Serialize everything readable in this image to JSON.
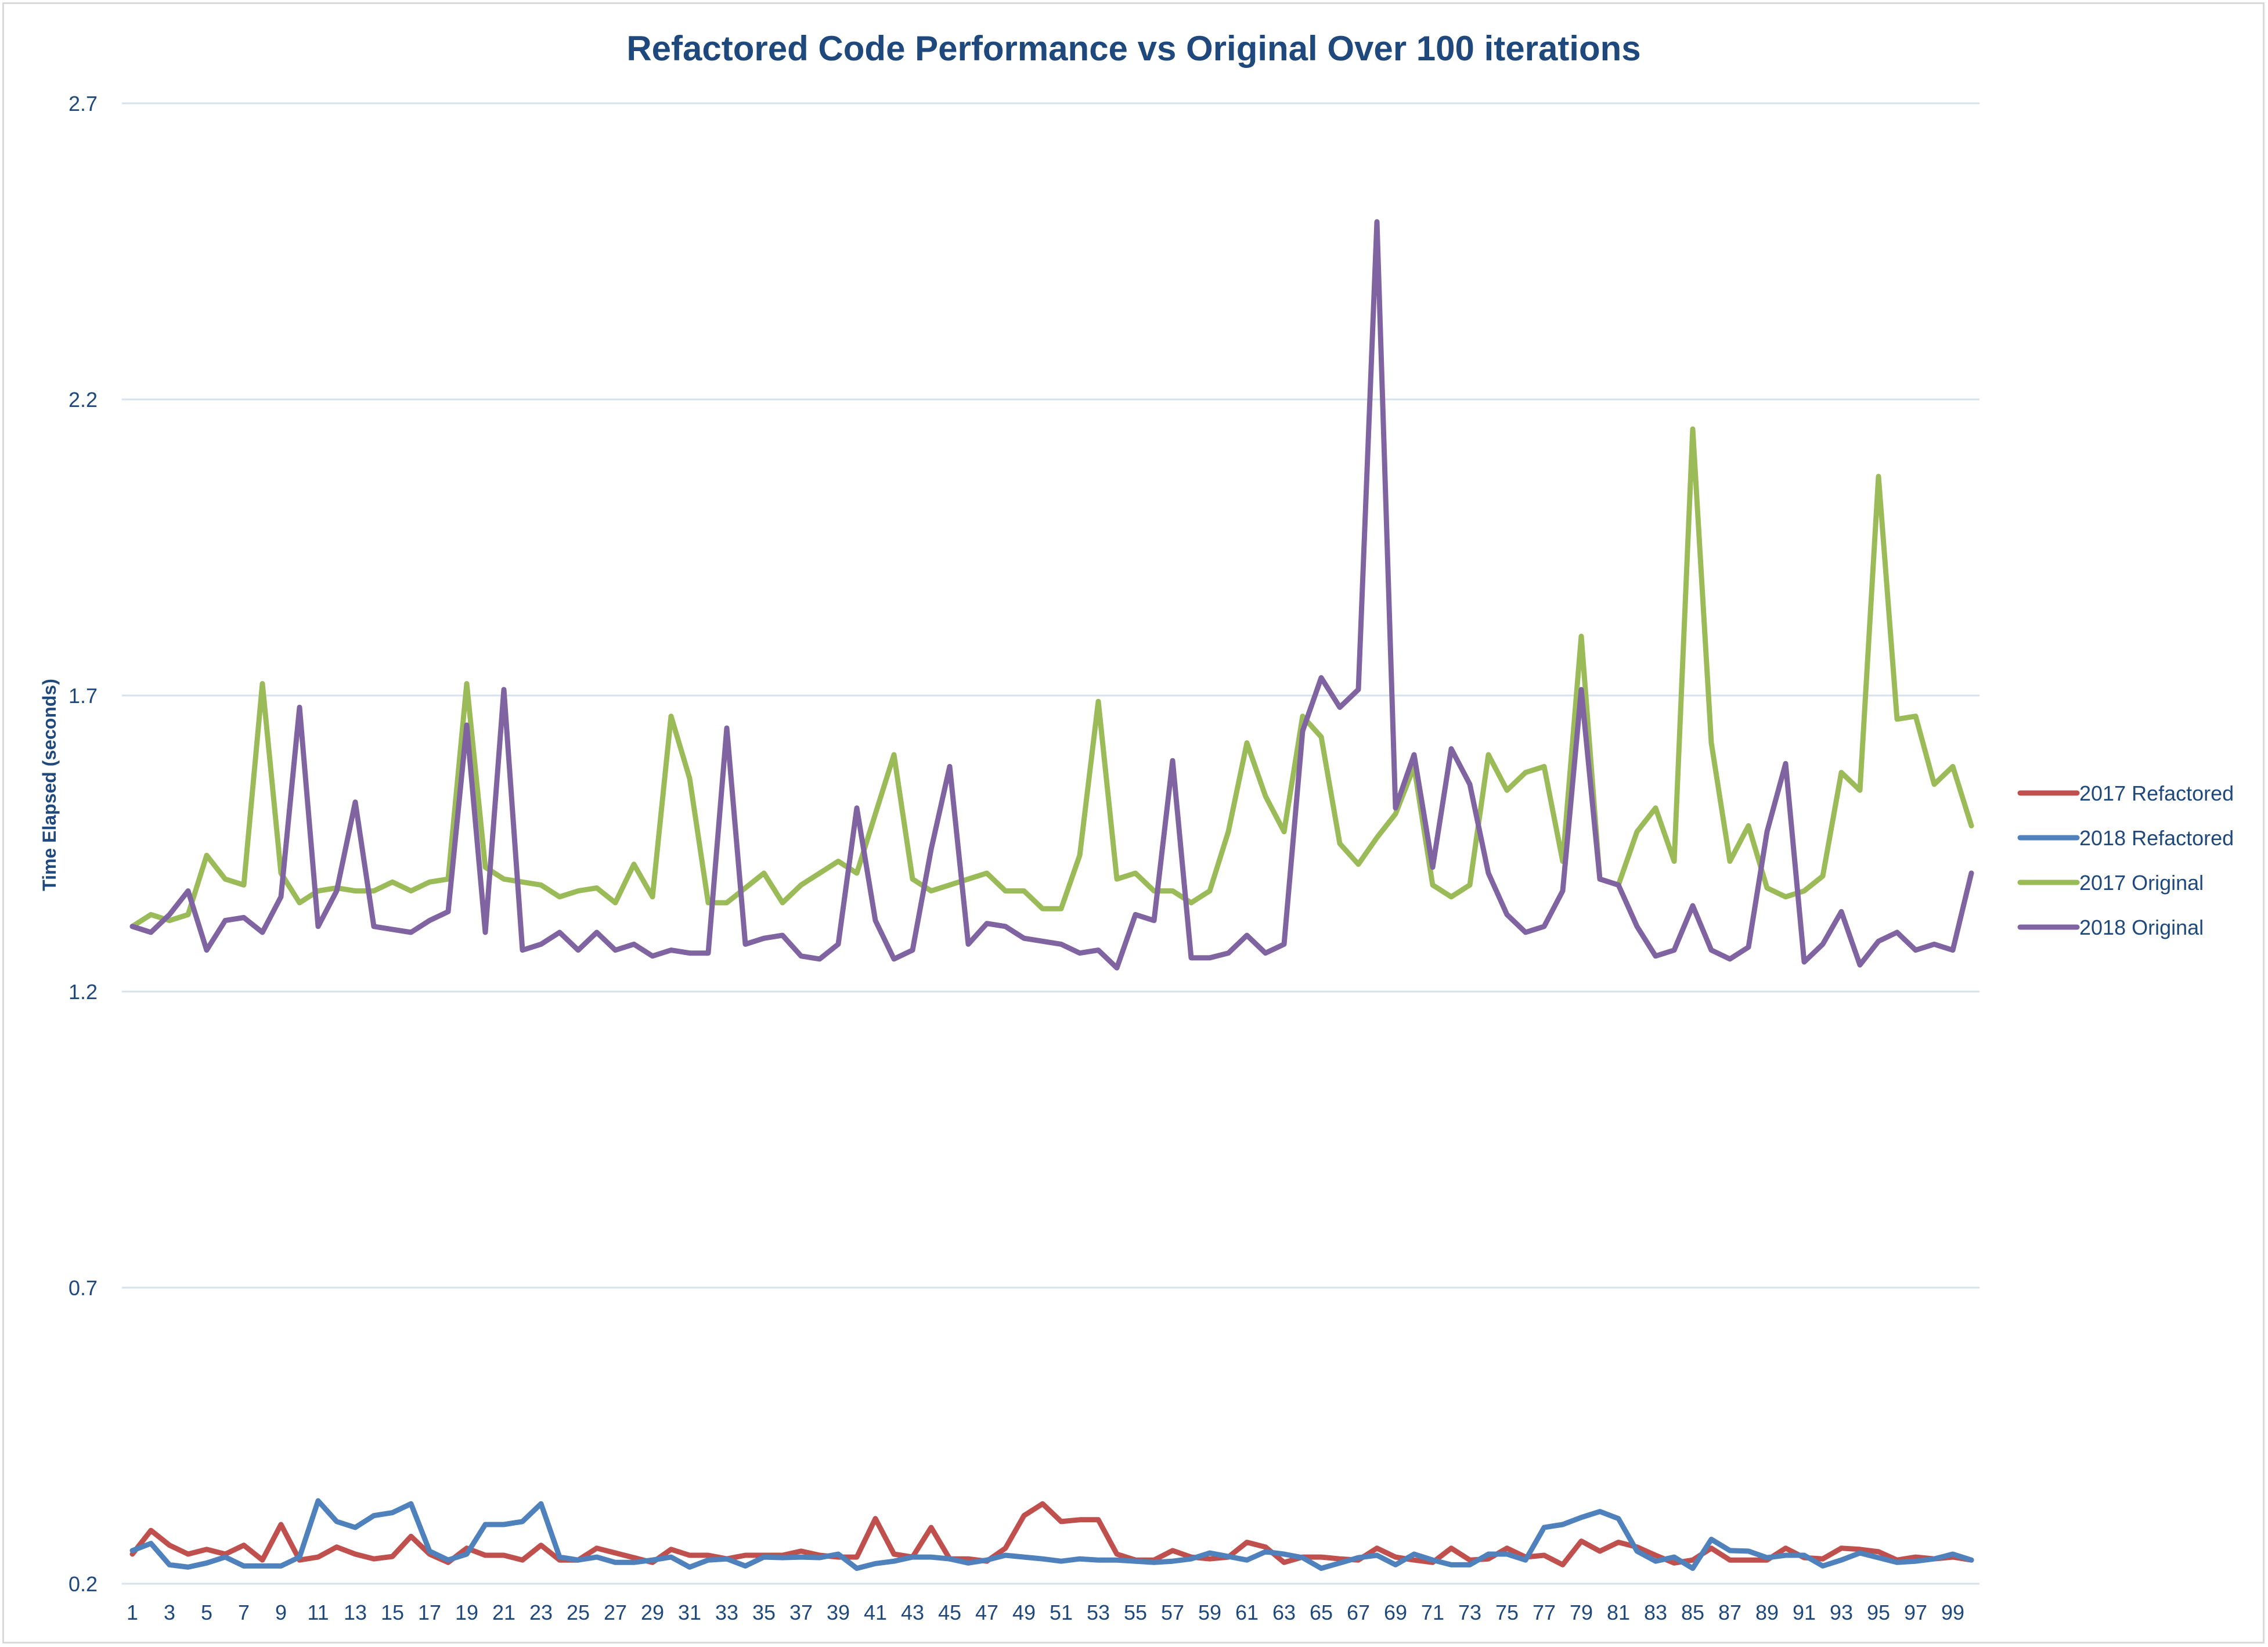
{
  "chart_data": {
    "type": "line",
    "title": "Refactored Code Performance vs Original Over 100 iterations",
    "xlabel": "",
    "ylabel": "Time Elapsed (seconds)",
    "ylim": [
      0.2,
      2.7
    ],
    "yticks": [
      "0.2",
      "0.7",
      "1.2",
      "1.7",
      "2.2",
      "2.7"
    ],
    "xtick_labels": [
      "1",
      "3",
      "5",
      "7",
      "9",
      "11",
      "13",
      "15",
      "17",
      "19",
      "21",
      "23",
      "25",
      "27",
      "29",
      "31",
      "33",
      "35",
      "37",
      "39",
      "41",
      "43",
      "45",
      "47",
      "49",
      "51",
      "53",
      "55",
      "57",
      "59",
      "61",
      "63",
      "65",
      "67",
      "69",
      "71",
      "73",
      "75",
      "77",
      "79",
      "81",
      "83",
      "85",
      "87",
      "89",
      "91",
      "93",
      "95",
      "97",
      "99"
    ],
    "grid": true,
    "legend_position": "right",
    "x": [
      1,
      2,
      3,
      4,
      5,
      6,
      7,
      8,
      9,
      10,
      11,
      12,
      13,
      14,
      15,
      16,
      17,
      18,
      19,
      20,
      21,
      22,
      23,
      24,
      25,
      26,
      27,
      28,
      29,
      30,
      31,
      32,
      33,
      34,
      35,
      36,
      37,
      38,
      39,
      40,
      41,
      42,
      43,
      44,
      45,
      46,
      47,
      48,
      49,
      50,
      51,
      52,
      53,
      54,
      55,
      56,
      57,
      58,
      59,
      60,
      61,
      62,
      63,
      64,
      65,
      66,
      67,
      68,
      69,
      70,
      71,
      72,
      73,
      74,
      75,
      76,
      77,
      78,
      79,
      80,
      81,
      82,
      83,
      84,
      85,
      86,
      87,
      88,
      89,
      90,
      91,
      92,
      93,
      94,
      95,
      96,
      97,
      98,
      99,
      100
    ],
    "series": [
      {
        "name": "2017 Refactored",
        "color": "#c0504d",
        "values": [
          0.25,
          0.29,
          0.265,
          0.25,
          0.258,
          0.25,
          0.265,
          0.24,
          0.3,
          0.24,
          0.245,
          0.262,
          0.25,
          0.242,
          0.246,
          0.28,
          0.25,
          0.236,
          0.26,
          0.248,
          0.248,
          0.24,
          0.265,
          0.24,
          0.24,
          0.26,
          0.252,
          0.244,
          0.236,
          0.258,
          0.248,
          0.248,
          0.242,
          0.248,
          0.248,
          0.248,
          0.255,
          0.248,
          0.245,
          0.245,
          0.31,
          0.25,
          0.245,
          0.295,
          0.242,
          0.242,
          0.238,
          0.26,
          0.315,
          0.335,
          0.305,
          0.308,
          0.308,
          0.25,
          0.24,
          0.24,
          0.256,
          0.245,
          0.242,
          0.245,
          0.27,
          0.262,
          0.236,
          0.245,
          0.245,
          0.242,
          0.24,
          0.26,
          0.245,
          0.24,
          0.236,
          0.26,
          0.24,
          0.242,
          0.26,
          0.245,
          0.248,
          0.232,
          0.272,
          0.255,
          0.27,
          0.262,
          0.248,
          0.235,
          0.24,
          0.26,
          0.24,
          0.24,
          0.24,
          0.26,
          0.244,
          0.242,
          0.26,
          0.258,
          0.254,
          0.24,
          0.245,
          0.242,
          0.245,
          0.24
        ]
      },
      {
        "name": "2018 Refactored",
        "color": "#4f81bd",
        "values": [
          0.256,
          0.268,
          0.232,
          0.228,
          0.235,
          0.245,
          0.23,
          0.23,
          0.23,
          0.245,
          0.34,
          0.305,
          0.295,
          0.315,
          0.32,
          0.335,
          0.255,
          0.24,
          0.25,
          0.3,
          0.3,
          0.305,
          0.335,
          0.245,
          0.24,
          0.245,
          0.236,
          0.236,
          0.24,
          0.245,
          0.228,
          0.24,
          0.242,
          0.23,
          0.245,
          0.244,
          0.245,
          0.244,
          0.25,
          0.226,
          0.234,
          0.238,
          0.245,
          0.245,
          0.242,
          0.235,
          0.24,
          0.248,
          0.245,
          0.242,
          0.238,
          0.242,
          0.24,
          0.24,
          0.238,
          0.236,
          0.238,
          0.242,
          0.252,
          0.246,
          0.24,
          0.254,
          0.25,
          0.244,
          0.226,
          0.235,
          0.244,
          0.248,
          0.232,
          0.25,
          0.24,
          0.232,
          0.232,
          0.25,
          0.25,
          0.24,
          0.295,
          0.3,
          0.312,
          0.322,
          0.31,
          0.255,
          0.238,
          0.245,
          0.226,
          0.275,
          0.256,
          0.255,
          0.244,
          0.248,
          0.248,
          0.23,
          0.24,
          0.252,
          0.244,
          0.236,
          0.238,
          0.242,
          0.25,
          0.24
        ]
      },
      {
        "name": "2017 Original",
        "color": "#9bbb59",
        "values": [
          1.31,
          1.33,
          1.32,
          1.33,
          1.43,
          1.39,
          1.38,
          1.72,
          1.4,
          1.35,
          1.37,
          1.375,
          1.37,
          1.37,
          1.385,
          1.37,
          1.385,
          1.39,
          1.72,
          1.41,
          1.39,
          1.385,
          1.38,
          1.36,
          1.37,
          1.375,
          1.35,
          1.415,
          1.36,
          1.665,
          1.56,
          1.35,
          1.35,
          1.375,
          1.4,
          1.35,
          1.38,
          1.4,
          1.42,
          1.4,
          1.5,
          1.6,
          1.39,
          1.37,
          1.38,
          1.39,
          1.4,
          1.37,
          1.37,
          1.34,
          1.34,
          1.43,
          1.69,
          1.39,
          1.4,
          1.37,
          1.37,
          1.35,
          1.37,
          1.47,
          1.62,
          1.53,
          1.47,
          1.665,
          1.63,
          1.45,
          1.415,
          1.46,
          1.5,
          1.58,
          1.38,
          1.36,
          1.38,
          1.6,
          1.54,
          1.57,
          1.58,
          1.42,
          1.8,
          1.39,
          1.38,
          1.47,
          1.51,
          1.42,
          2.15,
          1.62,
          1.42,
          1.48,
          1.375,
          1.36,
          1.37,
          1.395,
          1.57,
          1.54,
          2.07,
          1.66,
          1.665,
          1.55,
          1.58,
          1.48
        ]
      },
      {
        "name": "2018 Original",
        "color": "#8064a2",
        "values": [
          1.31,
          1.3,
          1.33,
          1.37,
          1.27,
          1.32,
          1.325,
          1.3,
          1.36,
          1.68,
          1.31,
          1.37,
          1.52,
          1.31,
          1.305,
          1.3,
          1.32,
          1.335,
          1.65,
          1.3,
          1.71,
          1.27,
          1.28,
          1.3,
          1.27,
          1.3,
          1.27,
          1.28,
          1.26,
          1.27,
          1.265,
          1.265,
          1.645,
          1.28,
          1.29,
          1.295,
          1.26,
          1.255,
          1.28,
          1.51,
          1.32,
          1.255,
          1.27,
          1.44,
          1.58,
          1.28,
          1.315,
          1.31,
          1.29,
          1.285,
          1.28,
          1.265,
          1.27,
          1.24,
          1.33,
          1.32,
          1.59,
          1.257,
          1.257,
          1.265,
          1.295,
          1.265,
          1.28,
          1.64,
          1.73,
          1.68,
          1.71,
          2.5,
          1.51,
          1.6,
          1.41,
          1.61,
          1.55,
          1.4,
          1.33,
          1.3,
          1.31,
          1.37,
          1.71,
          1.39,
          1.38,
          1.31,
          1.26,
          1.27,
          1.345,
          1.27,
          1.255,
          1.275,
          1.47,
          1.585,
          1.25,
          1.28,
          1.335,
          1.245,
          1.285,
          1.3,
          1.27,
          1.28,
          1.27,
          1.4
        ]
      }
    ]
  }
}
